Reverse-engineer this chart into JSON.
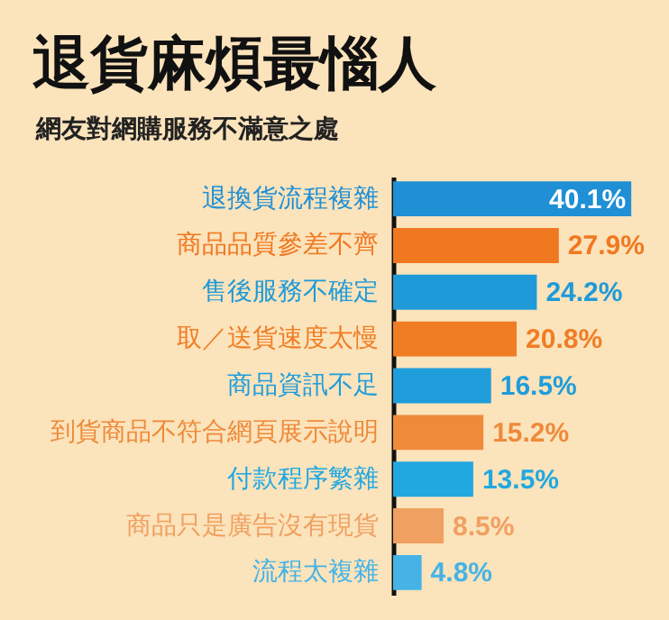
{
  "chart_data": {
    "type": "bar",
    "orientation": "horizontal",
    "title": "退貨麻煩最惱人",
    "subtitle": "網友對網購服務不滿意之處",
    "categories": [
      "退換貨流程複雜",
      "商品品質參差不齊",
      "售後服務不確定",
      "取／送貨速度太慢",
      "商品資訊不足",
      "到貨商品不符合網頁展示說明",
      "付款程序繁雜",
      "商品只是廣告沒有現貨",
      "流程太複雜"
    ],
    "values": [
      40.1,
      27.9,
      24.2,
      20.8,
      16.5,
      15.2,
      13.5,
      8.5,
      4.8
    ],
    "colors": [
      "#1f8fd6",
      "#f07820",
      "#1f9ad8",
      "#f07d24",
      "#1f9ddb",
      "#ee8a3a",
      "#22a8e0",
      "#f0a060",
      "#45b3e6"
    ],
    "value_labels": [
      "40.1%",
      "27.9%",
      "24.2%",
      "20.8%",
      "16.5%",
      "15.2%",
      "13.5%",
      "8.5%",
      "4.8%"
    ]
  }
}
